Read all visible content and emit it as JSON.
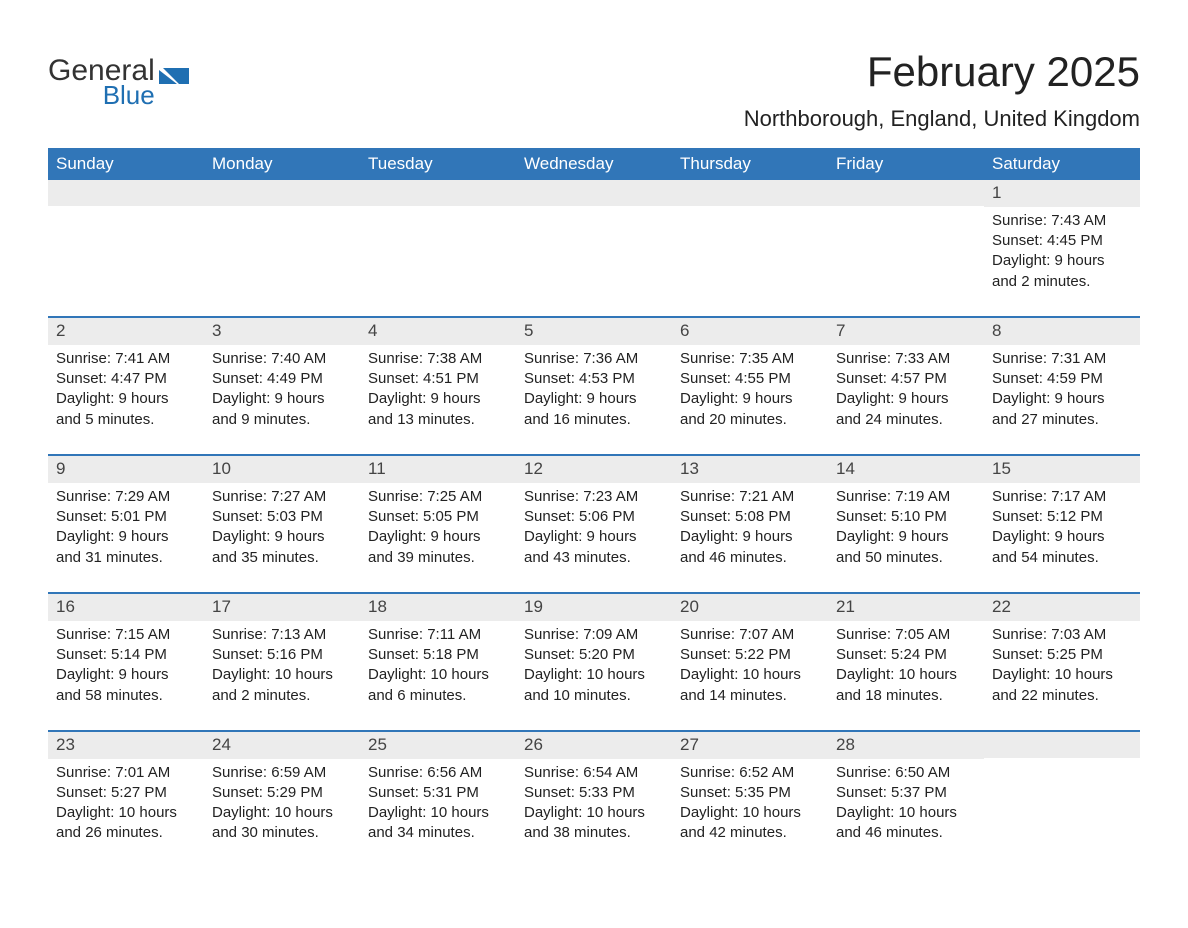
{
  "colors": {
    "header_bg": "#3176b8",
    "header_text": "#ffffff",
    "daynum_bg": "#ececec",
    "row_divider": "#3176b8",
    "text": "#222222",
    "logo_gray": "#333333",
    "logo_blue": "#1f6fb2"
  },
  "logo": {
    "word1": "General",
    "word2": "Blue"
  },
  "title": {
    "month": "February 2025",
    "location": "Northborough, England, United Kingdom"
  },
  "weekdays": [
    "Sunday",
    "Monday",
    "Tuesday",
    "Wednesday",
    "Thursday",
    "Friday",
    "Saturday"
  ],
  "weeks": [
    [
      {},
      {},
      {},
      {},
      {},
      {},
      {
        "n": "1",
        "sunrise": "Sunrise: 7:43 AM",
        "sunset": "Sunset: 4:45 PM",
        "d1": "Daylight: 9 hours",
        "d2": "and 2 minutes."
      }
    ],
    [
      {
        "n": "2",
        "sunrise": "Sunrise: 7:41 AM",
        "sunset": "Sunset: 4:47 PM",
        "d1": "Daylight: 9 hours",
        "d2": "and 5 minutes."
      },
      {
        "n": "3",
        "sunrise": "Sunrise: 7:40 AM",
        "sunset": "Sunset: 4:49 PM",
        "d1": "Daylight: 9 hours",
        "d2": "and 9 minutes."
      },
      {
        "n": "4",
        "sunrise": "Sunrise: 7:38 AM",
        "sunset": "Sunset: 4:51 PM",
        "d1": "Daylight: 9 hours",
        "d2": "and 13 minutes."
      },
      {
        "n": "5",
        "sunrise": "Sunrise: 7:36 AM",
        "sunset": "Sunset: 4:53 PM",
        "d1": "Daylight: 9 hours",
        "d2": "and 16 minutes."
      },
      {
        "n": "6",
        "sunrise": "Sunrise: 7:35 AM",
        "sunset": "Sunset: 4:55 PM",
        "d1": "Daylight: 9 hours",
        "d2": "and 20 minutes."
      },
      {
        "n": "7",
        "sunrise": "Sunrise: 7:33 AM",
        "sunset": "Sunset: 4:57 PM",
        "d1": "Daylight: 9 hours",
        "d2": "and 24 minutes."
      },
      {
        "n": "8",
        "sunrise": "Sunrise: 7:31 AM",
        "sunset": "Sunset: 4:59 PM",
        "d1": "Daylight: 9 hours",
        "d2": "and 27 minutes."
      }
    ],
    [
      {
        "n": "9",
        "sunrise": "Sunrise: 7:29 AM",
        "sunset": "Sunset: 5:01 PM",
        "d1": "Daylight: 9 hours",
        "d2": "and 31 minutes."
      },
      {
        "n": "10",
        "sunrise": "Sunrise: 7:27 AM",
        "sunset": "Sunset: 5:03 PM",
        "d1": "Daylight: 9 hours",
        "d2": "and 35 minutes."
      },
      {
        "n": "11",
        "sunrise": "Sunrise: 7:25 AM",
        "sunset": "Sunset: 5:05 PM",
        "d1": "Daylight: 9 hours",
        "d2": "and 39 minutes."
      },
      {
        "n": "12",
        "sunrise": "Sunrise: 7:23 AM",
        "sunset": "Sunset: 5:06 PM",
        "d1": "Daylight: 9 hours",
        "d2": "and 43 minutes."
      },
      {
        "n": "13",
        "sunrise": "Sunrise: 7:21 AM",
        "sunset": "Sunset: 5:08 PM",
        "d1": "Daylight: 9 hours",
        "d2": "and 46 minutes."
      },
      {
        "n": "14",
        "sunrise": "Sunrise: 7:19 AM",
        "sunset": "Sunset: 5:10 PM",
        "d1": "Daylight: 9 hours",
        "d2": "and 50 minutes."
      },
      {
        "n": "15",
        "sunrise": "Sunrise: 7:17 AM",
        "sunset": "Sunset: 5:12 PM",
        "d1": "Daylight: 9 hours",
        "d2": "and 54 minutes."
      }
    ],
    [
      {
        "n": "16",
        "sunrise": "Sunrise: 7:15 AM",
        "sunset": "Sunset: 5:14 PM",
        "d1": "Daylight: 9 hours",
        "d2": "and 58 minutes."
      },
      {
        "n": "17",
        "sunrise": "Sunrise: 7:13 AM",
        "sunset": "Sunset: 5:16 PM",
        "d1": "Daylight: 10 hours",
        "d2": "and 2 minutes."
      },
      {
        "n": "18",
        "sunrise": "Sunrise: 7:11 AM",
        "sunset": "Sunset: 5:18 PM",
        "d1": "Daylight: 10 hours",
        "d2": "and 6 minutes."
      },
      {
        "n": "19",
        "sunrise": "Sunrise: 7:09 AM",
        "sunset": "Sunset: 5:20 PM",
        "d1": "Daylight: 10 hours",
        "d2": "and 10 minutes."
      },
      {
        "n": "20",
        "sunrise": "Sunrise: 7:07 AM",
        "sunset": "Sunset: 5:22 PM",
        "d1": "Daylight: 10 hours",
        "d2": "and 14 minutes."
      },
      {
        "n": "21",
        "sunrise": "Sunrise: 7:05 AM",
        "sunset": "Sunset: 5:24 PM",
        "d1": "Daylight: 10 hours",
        "d2": "and 18 minutes."
      },
      {
        "n": "22",
        "sunrise": "Sunrise: 7:03 AM",
        "sunset": "Sunset: 5:25 PM",
        "d1": "Daylight: 10 hours",
        "d2": "and 22 minutes."
      }
    ],
    [
      {
        "n": "23",
        "sunrise": "Sunrise: 7:01 AM",
        "sunset": "Sunset: 5:27 PM",
        "d1": "Daylight: 10 hours",
        "d2": "and 26 minutes."
      },
      {
        "n": "24",
        "sunrise": "Sunrise: 6:59 AM",
        "sunset": "Sunset: 5:29 PM",
        "d1": "Daylight: 10 hours",
        "d2": "and 30 minutes."
      },
      {
        "n": "25",
        "sunrise": "Sunrise: 6:56 AM",
        "sunset": "Sunset: 5:31 PM",
        "d1": "Daylight: 10 hours",
        "d2": "and 34 minutes."
      },
      {
        "n": "26",
        "sunrise": "Sunrise: 6:54 AM",
        "sunset": "Sunset: 5:33 PM",
        "d1": "Daylight: 10 hours",
        "d2": "and 38 minutes."
      },
      {
        "n": "27",
        "sunrise": "Sunrise: 6:52 AM",
        "sunset": "Sunset: 5:35 PM",
        "d1": "Daylight: 10 hours",
        "d2": "and 42 minutes."
      },
      {
        "n": "28",
        "sunrise": "Sunrise: 6:50 AM",
        "sunset": "Sunset: 5:37 PM",
        "d1": "Daylight: 10 hours",
        "d2": "and 46 minutes."
      },
      {}
    ]
  ]
}
